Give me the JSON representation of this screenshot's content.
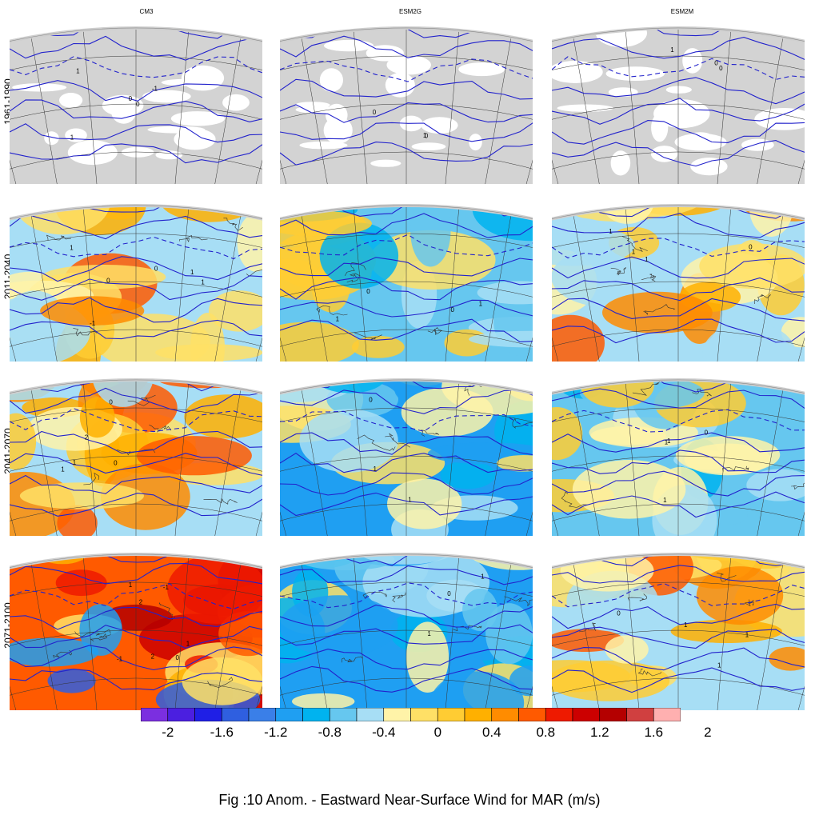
{
  "columns": [
    "CM3",
    "ESM2G",
    "ESM2M"
  ],
  "rows": [
    "1961-1990",
    "2011-2040",
    "2041-2070",
    "2071-2100"
  ],
  "panels": [
    {
      "column": "CM3",
      "period": "1961-1990",
      "field": "climatology",
      "contour_labels": [
        "0",
        "1",
        "0",
        "1",
        "-1"
      ]
    },
    {
      "column": "ESM2G",
      "period": "1961-1990",
      "field": "climatology",
      "contour_labels": [
        "0",
        "0",
        "1"
      ]
    },
    {
      "column": "ESM2M",
      "period": "1961-1990",
      "field": "climatology",
      "contour_labels": [
        "0",
        "1",
        "0"
      ]
    },
    {
      "column": "CM3",
      "period": "2011-2040",
      "field": "anomaly",
      "dominant": "warm",
      "contour_labels": [
        "1",
        "0",
        "1",
        "-1",
        "0",
        "1"
      ]
    },
    {
      "column": "ESM2G",
      "period": "2011-2040",
      "field": "anomaly",
      "dominant": "mixed",
      "contour_labels": [
        "1",
        "0",
        "1",
        "0"
      ]
    },
    {
      "column": "ESM2M",
      "period": "2011-2040",
      "field": "anomaly",
      "dominant": "warm",
      "contour_labels": [
        "1",
        "0",
        "1",
        "1"
      ]
    },
    {
      "column": "CM3",
      "period": "2041-2070",
      "field": "anomaly",
      "dominant": "warm",
      "contour_labels": [
        "2",
        "1",
        "0",
        "0",
        "1"
      ]
    },
    {
      "column": "ESM2G",
      "period": "2041-2070",
      "field": "anomaly",
      "dominant": "cool",
      "contour_labels": [
        "1",
        "0",
        "1"
      ]
    },
    {
      "column": "ESM2M",
      "period": "2041-2070",
      "field": "anomaly",
      "dominant": "mixed",
      "contour_labels": [
        "1",
        "1",
        "0",
        "1"
      ]
    },
    {
      "column": "CM3",
      "period": "2071-2100",
      "field": "anomaly",
      "dominant": "strong-warm",
      "contour_labels": [
        "2",
        "2",
        "1",
        "1",
        "0",
        "-1",
        "-1"
      ]
    },
    {
      "column": "ESM2G",
      "period": "2071-2100",
      "field": "anomaly",
      "dominant": "cool",
      "contour_labels": [
        "1",
        "0",
        "1"
      ]
    },
    {
      "column": "ESM2M",
      "period": "2071-2100",
      "field": "anomaly",
      "dominant": "warm",
      "contour_labels": [
        "1",
        "1",
        "0",
        "1"
      ]
    }
  ],
  "colorbar": {
    "colors": [
      "#7b2fe0",
      "#4b1fe0",
      "#1f1fe6",
      "#2f5fe0",
      "#3a7fe8",
      "#1f9ff2",
      "#00b3ef",
      "#66c7ef",
      "#a7def5",
      "#fff3a8",
      "#ffe066",
      "#ffcc33",
      "#ffb000",
      "#ff8c00",
      "#ff5a00",
      "#ee1a00",
      "#cc0000",
      "#b40000",
      "#d04040",
      "#ffb0b0"
    ],
    "ticks": [
      "-2",
      "-1.6",
      "-1.2",
      "-0.8",
      "-0.4",
      "0",
      "0.4",
      "0.8",
      "1.2",
      "1.6",
      "2"
    ]
  },
  "caption": "Fig :10  Anom.  - Eastward Near-Surface Wind for MAR (m/s)"
}
